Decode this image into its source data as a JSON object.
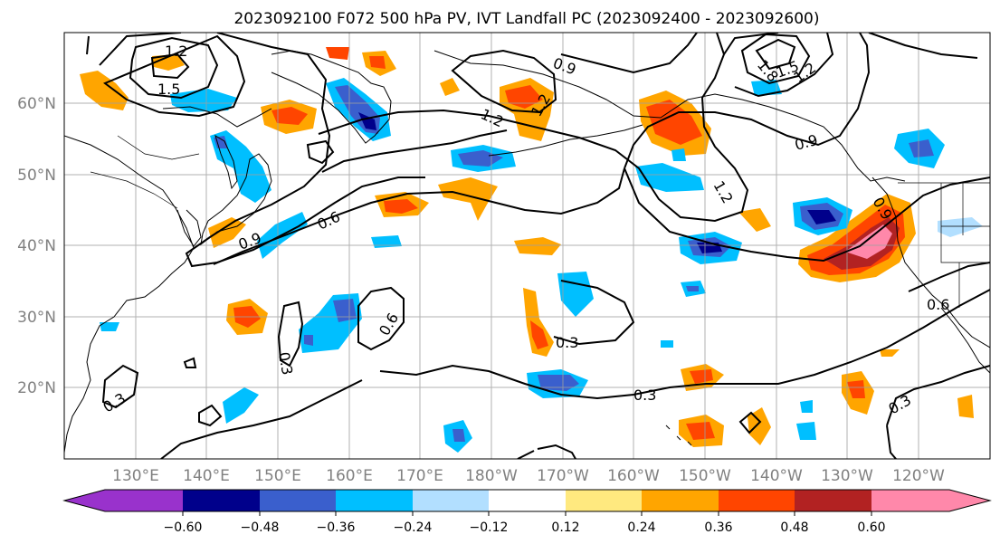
{
  "figure": {
    "title": "2023092100 F072 500 hPa PV, IVT Landfall PC (2023092400 - 2023092600)"
  },
  "map": {
    "projection": "PlateCarree",
    "lon_range": [
      120,
      250
    ],
    "lat_range": [
      10,
      70
    ],
    "lat_ticks": [
      "20°N",
      "30°N",
      "40°N",
      "50°N",
      "60°N"
    ],
    "lon_ticks": [
      "130°E",
      "140°E",
      "150°E",
      "160°E",
      "170°E",
      "180°W",
      "170°W",
      "160°W",
      "150°W",
      "140°W",
      "130°W",
      "120°W"
    ],
    "gridlines": true,
    "contour_labels": [
      "1.2",
      "1.5",
      "1.2",
      "0.9",
      "1.2",
      "1.8",
      "1.5",
      "1.2",
      "0.9",
      "1.2",
      "0.9",
      "0.6",
      "0.9",
      "0.6",
      "0.3",
      "0.3",
      "0.3",
      "0.6",
      "0.3",
      "0.3"
    ]
  },
  "colorbar": {
    "ticks": [
      "−0.60",
      "−0.48",
      "−0.36",
      "−0.24",
      "−0.12",
      "0.12",
      "0.24",
      "0.36",
      "0.48",
      "0.60"
    ],
    "colors": [
      "#9932cc",
      "#00008b",
      "#3a5fcd",
      "#00bfff",
      "#b2dfff",
      "#ffffff",
      "#ffe97f",
      "#ffa500",
      "#ff4500",
      "#b22222",
      "#ff88aa"
    ],
    "extend": "both"
  }
}
